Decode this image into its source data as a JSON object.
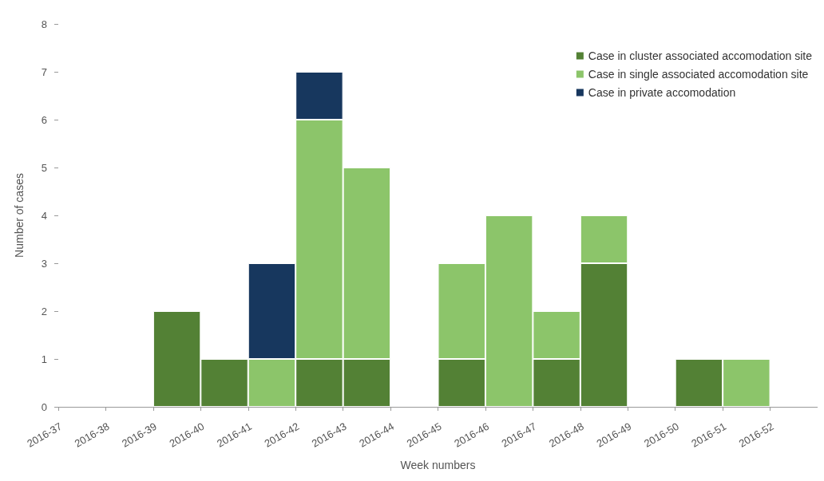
{
  "chart_data": {
    "type": "bar",
    "xlabel": "Week numbers",
    "ylabel": "Number of cases",
    "categories": [
      "2016-37",
      "2016-38",
      "2016-39",
      "2016-40",
      "2016-41",
      "2016-42",
      "2016-43",
      "2016-44",
      "2016-45",
      "2016-46",
      "2016-47",
      "2016-48",
      "2016-49",
      "2016-50",
      "2016-51",
      "2016-52"
    ],
    "stacked": true,
    "series": [
      {
        "name": "Case in cluster associated accomodation site",
        "color": "#538135",
        "values": [
          0,
          0,
          2,
          1,
          0,
          1,
          1,
          0,
          1,
          0,
          1,
          3,
          0,
          1,
          0,
          0
        ]
      },
      {
        "name": "Case in single associated accomodation site",
        "color": "#8cc56a",
        "values": [
          0,
          0,
          0,
          0,
          1,
          5,
          4,
          0,
          2,
          4,
          1,
          1,
          0,
          0,
          1,
          0
        ]
      },
      {
        "name": "Case in private accomodation",
        "color": "#17375e",
        "values": [
          0,
          0,
          0,
          0,
          2,
          1,
          0,
          0,
          0,
          0,
          0,
          0,
          0,
          0,
          0,
          0
        ]
      }
    ],
    "ylim": [
      0,
      8
    ],
    "yticks": [
      0,
      1,
      2,
      3,
      4,
      5,
      6,
      7,
      8
    ],
    "grid": false,
    "legend": "top right"
  }
}
